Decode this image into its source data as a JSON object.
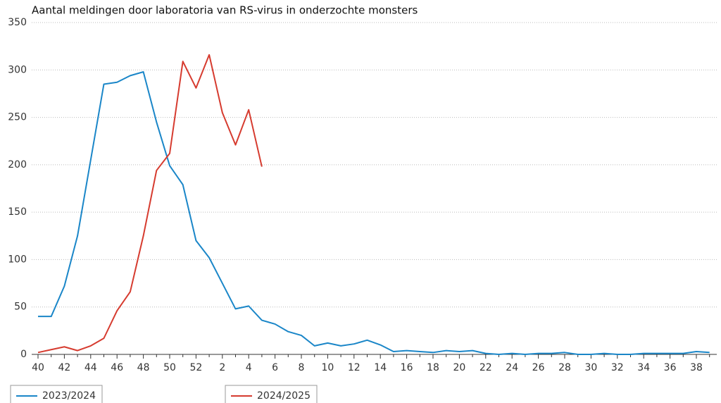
{
  "chart_data": {
    "type": "line",
    "title": "Aantal meldingen door laboratoria van RS-virus in onderzochte monsters",
    "categories": [
      "40",
      null,
      "42",
      null,
      "44",
      null,
      "46",
      null,
      "48",
      null,
      "50",
      null,
      "52",
      null,
      "2",
      null,
      "4",
      null,
      "6",
      null,
      "8",
      null,
      "10",
      null,
      "12",
      null,
      "14",
      null,
      "16",
      null,
      "18",
      null,
      "20",
      null,
      "22",
      null,
      "24",
      null,
      "26",
      null,
      "28",
      null,
      "30",
      null,
      "32",
      null,
      "34",
      null,
      "36",
      null,
      "38",
      null
    ],
    "series": [
      {
        "name": "2023/2024",
        "color": "#1a86c8",
        "values": [
          40,
          40,
          72,
          125,
          205,
          285,
          287,
          294,
          298,
          245,
          199,
          179,
          120,
          102,
          75,
          48,
          51,
          36,
          32,
          24,
          20,
          9,
          12,
          9,
          11,
          15,
          10,
          3,
          4,
          3,
          2,
          4,
          3,
          4,
          1,
          0,
          1,
          0,
          1,
          1,
          2,
          0,
          0,
          1,
          0,
          0,
          1,
          1,
          1,
          1,
          3,
          2
        ]
      },
      {
        "name": "2024/2025",
        "color": "#d63b2f",
        "values": [
          2,
          5,
          8,
          4,
          9,
          17,
          46,
          66,
          125,
          194,
          212,
          309,
          281,
          316,
          255,
          221,
          258,
          198,
          null,
          null,
          null,
          null,
          null,
          null,
          null,
          null,
          null,
          null,
          null,
          null,
          null,
          null,
          null,
          null,
          null,
          null,
          null,
          null,
          null,
          null,
          null,
          null,
          null,
          null,
          null,
          null,
          null,
          null,
          null,
          null,
          null,
          null
        ]
      }
    ],
    "ylim": [
      0,
      350
    ],
    "yticks": [
      0,
      50,
      100,
      150,
      200,
      250,
      300,
      350
    ],
    "grid": true,
    "legend": "bottom-left"
  }
}
